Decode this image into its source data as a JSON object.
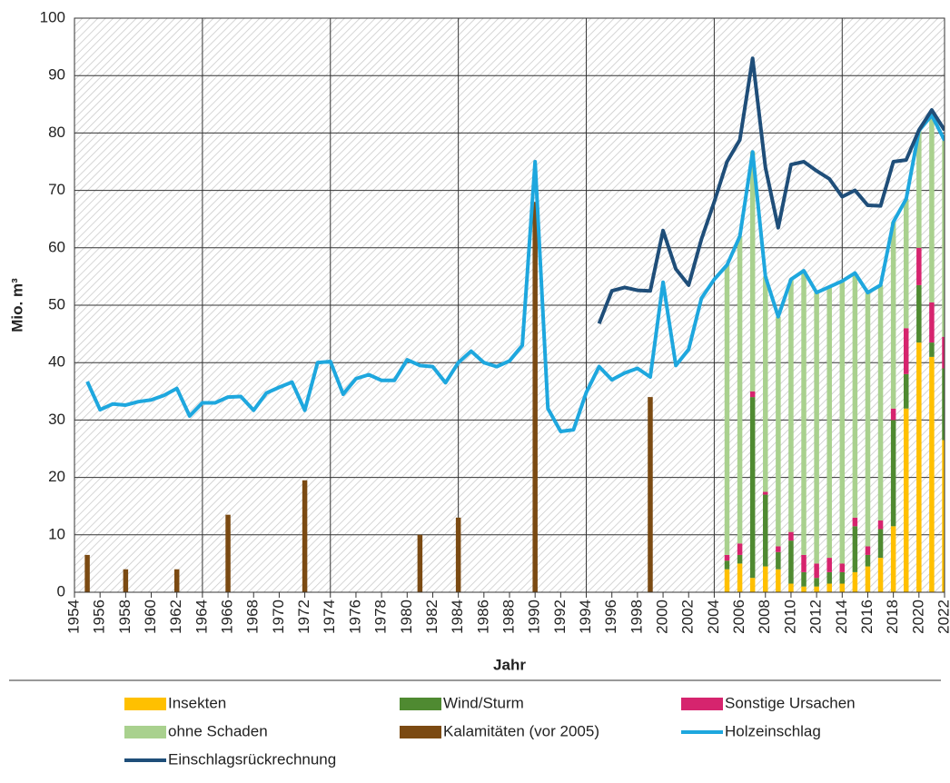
{
  "chart_data": {
    "type": "combo",
    "y_label": "Mio. m³",
    "x_label": "Jahr",
    "xlim": [
      1954,
      2022
    ],
    "xticks": [
      1954,
      1956,
      1958,
      1960,
      1962,
      1964,
      1966,
      1968,
      1970,
      1972,
      1974,
      1976,
      1978,
      1980,
      1982,
      1984,
      1986,
      1988,
      1990,
      1992,
      1994,
      1996,
      1998,
      2000,
      2002,
      2004,
      2006,
      2008,
      2010,
      2012,
      2014,
      2016,
      2018,
      2020,
      2022
    ],
    "ylim": [
      0,
      100
    ],
    "yticks": [
      0,
      10,
      20,
      30,
      40,
      50,
      60,
      70,
      80,
      90,
      100
    ],
    "grid": true,
    "series": [
      {
        "name": "Insekten",
        "type": "bar",
        "stack": true,
        "color": "#ffc000",
        "x": [
          2005,
          2006,
          2007,
          2008,
          2009,
          2010,
          2011,
          2012,
          2013,
          2014,
          2015,
          2016,
          2017,
          2018,
          2019,
          2020,
          2021,
          2022
        ],
        "values": [
          4,
          5,
          2.5,
          4.5,
          4,
          1.5,
          1,
          1,
          1.5,
          1.5,
          3.5,
          4.5,
          6,
          11.5,
          32,
          43.5,
          41,
          26.5
        ]
      },
      {
        "name": "Wind/Sturm",
        "type": "bar",
        "stack": true,
        "color": "#4f8a31",
        "x": [
          2005,
          2006,
          2007,
          2008,
          2009,
          2010,
          2011,
          2012,
          2013,
          2014,
          2015,
          2016,
          2017,
          2018,
          2019,
          2020,
          2021,
          2022
        ],
        "values": [
          1.5,
          1.5,
          31.5,
          12.5,
          3,
          7.5,
          2.5,
          1.5,
          2,
          2,
          8,
          2,
          5,
          18.5,
          6,
          10,
          2.5,
          12.5
        ]
      },
      {
        "name": "Sonstige Ursachen",
        "type": "bar",
        "stack": true,
        "color": "#d6246e",
        "x": [
          2005,
          2006,
          2007,
          2008,
          2009,
          2010,
          2011,
          2012,
          2013,
          2014,
          2015,
          2016,
          2017,
          2018,
          2019,
          2020,
          2021,
          2022
        ],
        "values": [
          1,
          2,
          1,
          0.5,
          1,
          1.5,
          3,
          2.5,
          2.5,
          1.5,
          1.5,
          1.5,
          1.5,
          2,
          8,
          6.5,
          7,
          5.5
        ]
      },
      {
        "name": "ohne Schaden",
        "type": "bar",
        "stack": true,
        "color": "#a9d18e",
        "x": [
          2005,
          2006,
          2007,
          2008,
          2009,
          2010,
          2011,
          2012,
          2013,
          2014,
          2015,
          2016,
          2017,
          2018,
          2019,
          2020,
          2021,
          2022
        ],
        "values": [
          50.5,
          53.5,
          41.7,
          37.5,
          40,
          44,
          49.5,
          47.2,
          47.2,
          49.2,
          42.6,
          44.2,
          41,
          32.5,
          22.5,
          20.4,
          32.6,
          34.2
        ]
      },
      {
        "name": "Kalamitäten (vor 2005)",
        "type": "bar",
        "color": "#7b4a12",
        "x": [
          1955,
          1958,
          1962,
          1966,
          1972,
          1981,
          1984,
          1990,
          1999
        ],
        "values": [
          6.5,
          4,
          4,
          13.5,
          19.5,
          10,
          13,
          68,
          34
        ]
      },
      {
        "name": "Holzeinschlag",
        "type": "line",
        "color": "#1ea7de",
        "x": [
          1955,
          1956,
          1957,
          1958,
          1959,
          1960,
          1961,
          1962,
          1963,
          1964,
          1965,
          1966,
          1967,
          1968,
          1969,
          1970,
          1971,
          1972,
          1973,
          1974,
          1975,
          1976,
          1977,
          1978,
          1979,
          1980,
          1981,
          1982,
          1983,
          1984,
          1985,
          1986,
          1987,
          1988,
          1989,
          1990,
          1991,
          1992,
          1993,
          1994,
          1995,
          1996,
          1997,
          1998,
          1999,
          2000,
          2001,
          2002,
          2003,
          2004,
          2005,
          2006,
          2007,
          2008,
          2009,
          2010,
          2011,
          2012,
          2013,
          2014,
          2015,
          2016,
          2017,
          2018,
          2019,
          2020,
          2021,
          2022
        ],
        "values": [
          36.7,
          31.8,
          32.8,
          32.6,
          33.2,
          33.5,
          34.3,
          35.5,
          30.7,
          33,
          33,
          34,
          34.1,
          31.7,
          34.7,
          35.7,
          36.6,
          31.7,
          40,
          40.2,
          34.5,
          37.2,
          37.9,
          36.9,
          36.9,
          40.5,
          39.5,
          39.3,
          36.5,
          40,
          42,
          40,
          39.3,
          40.3,
          43,
          75,
          32,
          28,
          28.3,
          34.8,
          39.3,
          37,
          38.2,
          39,
          37.5,
          54,
          39.5,
          42.3,
          51.2,
          54.5,
          57,
          62,
          76.7,
          55,
          48,
          54.5,
          56,
          52.2,
          53.2,
          54.2,
          55.6,
          52.2,
          53.5,
          64.5,
          68.5,
          80.4,
          83.1,
          78.7
        ]
      },
      {
        "name": "Einschlagsrückrechnung",
        "type": "line",
        "color": "#1f4e79",
        "x": [
          1995,
          1996,
          1997,
          1998,
          1999,
          2000,
          2001,
          2002,
          2003,
          2004,
          2005,
          2006,
          2007,
          2008,
          2009,
          2010,
          2011,
          2012,
          2013,
          2014,
          2015,
          2016,
          2017,
          2018,
          2019,
          2020,
          2021,
          2022
        ],
        "values": [
          46.8,
          52.5,
          53.1,
          52.6,
          52.5,
          63,
          56.3,
          53.5,
          61.5,
          68,
          75,
          78.8,
          93,
          74,
          63.5,
          74.5,
          75,
          73.4,
          72,
          68.9,
          70,
          67.4,
          67.3,
          75,
          75.3,
          80.5,
          84,
          80.5
        ]
      }
    ]
  }
}
